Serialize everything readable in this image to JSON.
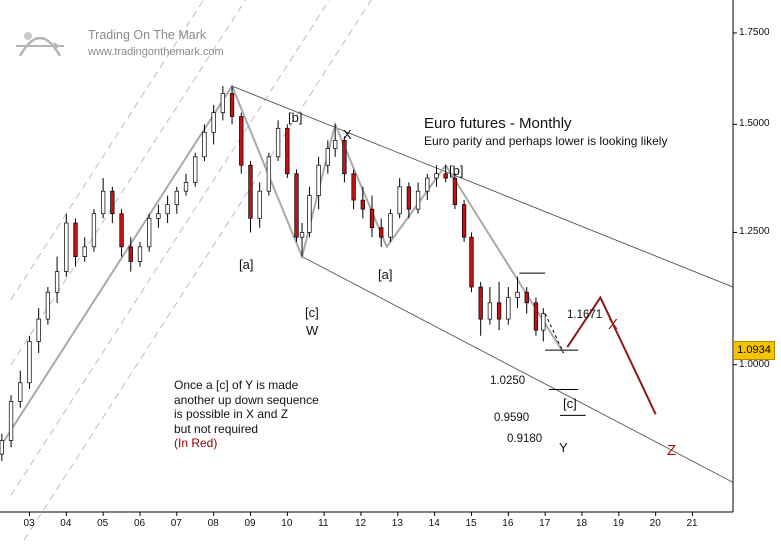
{
  "logo": {
    "title": "Trading On The Mark",
    "url": "www.tradingonthemark.com",
    "icon": "archer-icon"
  },
  "header": {
    "title": "Euro futures - Monthly",
    "subtitle": "Euro parity and perhaps lower is looking likely"
  },
  "note": {
    "lines": [
      "Once a [c] of Y is made",
      "another up down sequence",
      "is possible in X and Z",
      "but not required"
    ],
    "red_line": "(In Red)"
  },
  "last_price": "1.0934",
  "wave_labels": {
    "a1": "[a]",
    "b1": "[b]",
    "c1": "[c]",
    "w": "W",
    "x": "X",
    "a2": "[a]",
    "b2": "[b]",
    "c2": "[c]",
    "y": "Y",
    "red_x": "X",
    "red_z": "Z"
  },
  "levels": {
    "l1": "1.1671",
    "l2": "1.0250",
    "l3": "0.9590",
    "l4": "0.9180"
  },
  "colors": {
    "bull": "#ffffff",
    "bear": "#c41212",
    "line": "#a9a9a9",
    "projection": "#8b1a1a",
    "price_box": "#f5c400"
  },
  "chart_data": {
    "type": "candlestick",
    "x_ticks": [
      "03",
      "04",
      "05",
      "06",
      "07",
      "08",
      "09",
      "10",
      "11",
      "12",
      "13",
      "14",
      "15",
      "16",
      "17",
      "18",
      "19",
      "20",
      "21"
    ],
    "y_ticks": [
      "1.7500",
      "1.5000",
      "1.2500",
      "1.0000"
    ],
    "ylim": [
      0.78,
      1.85
    ],
    "xlim": [
      2002.2,
      2022.1
    ],
    "scale": "log",
    "grid": false,
    "wave_path": [
      [
        2002.2,
        0.87
      ],
      [
        2008.5,
        1.6
      ],
      [
        2010.4,
        1.2
      ],
      [
        2011.3,
        1.5
      ],
      [
        2012.7,
        1.22
      ],
      [
        2014.3,
        1.4
      ],
      [
        2017.5,
        1.02
      ]
    ],
    "projection": [
      [
        2017.6,
        1.03
      ],
      [
        2018.5,
        1.12
      ],
      [
        2020.0,
        0.92
      ]
    ],
    "channel_upper": [
      [
        2008.5,
        1.6
      ],
      [
        2022.1,
        1.14
      ]
    ],
    "channel_lower": [
      [
        2010.4,
        1.2
      ],
      [
        2022.1,
        0.82
      ]
    ],
    "ohlc": [
      [
        2002.25,
        0.86,
        0.89,
        0.85,
        0.88
      ],
      [
        2002.5,
        0.88,
        0.95,
        0.87,
        0.94
      ],
      [
        2002.75,
        0.94,
        0.99,
        0.93,
        0.97
      ],
      [
        2003.0,
        0.97,
        1.05,
        0.96,
        1.04
      ],
      [
        2003.25,
        1.04,
        1.1,
        1.02,
        1.08
      ],
      [
        2003.5,
        1.08,
        1.14,
        1.07,
        1.13
      ],
      [
        2003.75,
        1.13,
        1.2,
        1.11,
        1.17
      ],
      [
        2004.0,
        1.17,
        1.29,
        1.16,
        1.27
      ],
      [
        2004.25,
        1.27,
        1.28,
        1.18,
        1.2
      ],
      [
        2004.5,
        1.2,
        1.24,
        1.19,
        1.22
      ],
      [
        2004.75,
        1.22,
        1.3,
        1.21,
        1.29
      ],
      [
        2005.0,
        1.29,
        1.37,
        1.28,
        1.34
      ],
      [
        2005.25,
        1.34,
        1.35,
        1.27,
        1.29
      ],
      [
        2005.5,
        1.29,
        1.3,
        1.2,
        1.22
      ],
      [
        2005.75,
        1.22,
        1.24,
        1.17,
        1.19
      ],
      [
        2006.0,
        1.19,
        1.23,
        1.18,
        1.22
      ],
      [
        2006.25,
        1.22,
        1.29,
        1.21,
        1.28
      ],
      [
        2006.5,
        1.28,
        1.31,
        1.26,
        1.29
      ],
      [
        2006.75,
        1.29,
        1.33,
        1.27,
        1.31
      ],
      [
        2007.0,
        1.31,
        1.35,
        1.29,
        1.34
      ],
      [
        2007.25,
        1.34,
        1.38,
        1.33,
        1.36
      ],
      [
        2007.5,
        1.36,
        1.43,
        1.35,
        1.42
      ],
      [
        2007.75,
        1.42,
        1.5,
        1.41,
        1.48
      ],
      [
        2008.0,
        1.48,
        1.55,
        1.45,
        1.53
      ],
      [
        2008.25,
        1.53,
        1.6,
        1.51,
        1.58
      ],
      [
        2008.5,
        1.58,
        1.6,
        1.5,
        1.52
      ],
      [
        2008.75,
        1.52,
        1.53,
        1.38,
        1.4
      ],
      [
        2009.0,
        1.4,
        1.41,
        1.25,
        1.28
      ],
      [
        2009.25,
        1.28,
        1.36,
        1.26,
        1.34
      ],
      [
        2009.5,
        1.34,
        1.43,
        1.33,
        1.42
      ],
      [
        2009.75,
        1.42,
        1.51,
        1.41,
        1.49
      ],
      [
        2010.0,
        1.49,
        1.5,
        1.37,
        1.38
      ],
      [
        2010.25,
        1.38,
        1.39,
        1.23,
        1.24
      ],
      [
        2010.4,
        1.24,
        1.27,
        1.2,
        1.25
      ],
      [
        2010.6,
        1.25,
        1.35,
        1.24,
        1.33
      ],
      [
        2010.85,
        1.33,
        1.42,
        1.3,
        1.4
      ],
      [
        2011.1,
        1.4,
        1.46,
        1.38,
        1.44
      ],
      [
        2011.3,
        1.44,
        1.5,
        1.42,
        1.46
      ],
      [
        2011.55,
        1.46,
        1.47,
        1.36,
        1.38
      ],
      [
        2011.8,
        1.38,
        1.39,
        1.3,
        1.32
      ],
      [
        2012.05,
        1.32,
        1.35,
        1.28,
        1.3
      ],
      [
        2012.3,
        1.3,
        1.33,
        1.24,
        1.26
      ],
      [
        2012.55,
        1.26,
        1.28,
        1.22,
        1.24
      ],
      [
        2012.8,
        1.24,
        1.3,
        1.23,
        1.29
      ],
      [
        2013.05,
        1.29,
        1.37,
        1.28,
        1.35
      ],
      [
        2013.3,
        1.35,
        1.36,
        1.28,
        1.3
      ],
      [
        2013.55,
        1.3,
        1.36,
        1.29,
        1.34
      ],
      [
        2013.8,
        1.34,
        1.38,
        1.32,
        1.37
      ],
      [
        2014.05,
        1.37,
        1.4,
        1.35,
        1.38
      ],
      [
        2014.3,
        1.38,
        1.4,
        1.36,
        1.37
      ],
      [
        2014.55,
        1.37,
        1.38,
        1.3,
        1.31
      ],
      [
        2014.8,
        1.31,
        1.32,
        1.23,
        1.24
      ],
      [
        2015.0,
        1.24,
        1.25,
        1.13,
        1.14
      ],
      [
        2015.25,
        1.14,
        1.15,
        1.05,
        1.08
      ],
      [
        2015.5,
        1.08,
        1.14,
        1.07,
        1.11
      ],
      [
        2015.75,
        1.11,
        1.15,
        1.06,
        1.08
      ],
      [
        2016.0,
        1.08,
        1.14,
        1.07,
        1.12
      ],
      [
        2016.25,
        1.12,
        1.16,
        1.1,
        1.13
      ],
      [
        2016.5,
        1.13,
        1.14,
        1.09,
        1.11
      ],
      [
        2016.75,
        1.11,
        1.12,
        1.05,
        1.06
      ],
      [
        2016.95,
        1.06,
        1.1,
        1.04,
        1.09
      ]
    ]
  }
}
